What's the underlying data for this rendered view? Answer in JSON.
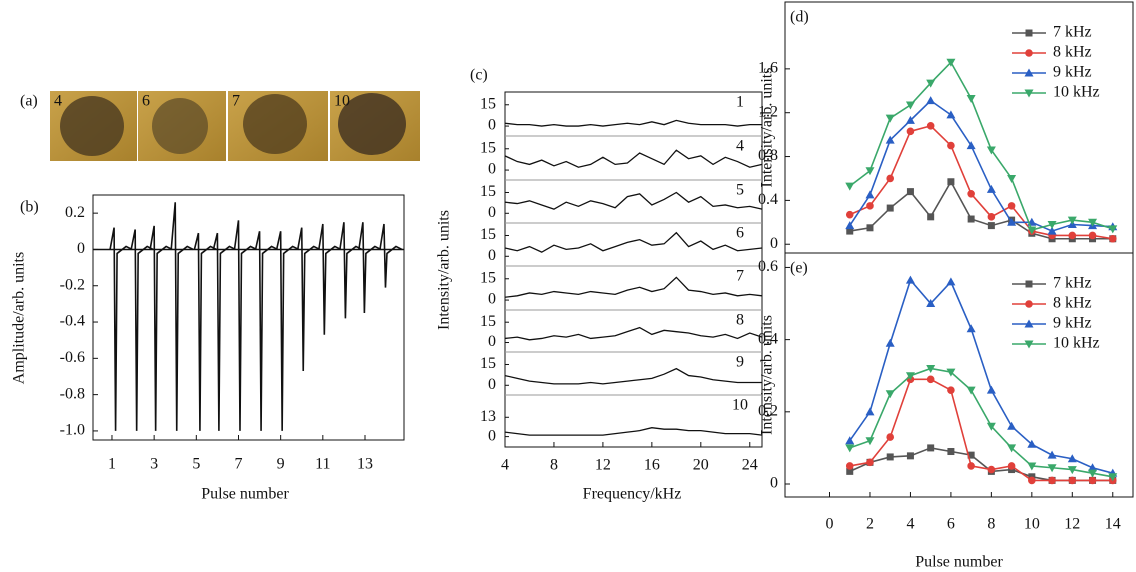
{
  "panel_a": {
    "panel_label": "(a)",
    "images": [
      {
        "label": "4"
      },
      {
        "label": "6"
      },
      {
        "label": "7"
      },
      {
        "label": "10"
      }
    ]
  },
  "chart_data": [
    {
      "type": "spike",
      "panel_label": "(b)",
      "y_label": "Amplitude/arb. units",
      "x_label": "Pulse number",
      "x": [
        1.1,
        2.1,
        3.0,
        4.0,
        5.1,
        6.0,
        7.0,
        8.0,
        9.0,
        10.0,
        11.0,
        12.0,
        12.9,
        13.9
      ],
      "max": [
        0.12,
        0.11,
        0.13,
        0.26,
        0.09,
        0.09,
        0.16,
        0.1,
        0.1,
        0.12,
        0.14,
        0.15,
        0.15,
        0.14
      ],
      "min": [
        -1,
        -1,
        -1,
        -1,
        -1,
        -1,
        -1,
        -1,
        -1,
        -0.67,
        -0.47,
        -0.38,
        -0.35,
        -0.21
      ],
      "color": "#111111",
      "xlim": [
        0.1,
        14.85
      ],
      "xticks": [
        1,
        3,
        5,
        7,
        9,
        11,
        13
      ],
      "ylim": [
        -1.05,
        0.3
      ],
      "yticks": [
        0.2,
        0,
        -0.2,
        -0.4,
        -0.6,
        -0.8,
        {
          "value": -1,
          "label": "-1.0"
        }
      ]
    },
    {
      "type": "stacked_line",
      "panel_label": "(c)",
      "y_label": "Intensity/arb. units",
      "x_label": "Frequency/kHz",
      "x": [
        4,
        5,
        6,
        7,
        8,
        9,
        10,
        11,
        12,
        13,
        14,
        15,
        16,
        17,
        18,
        19,
        20,
        21,
        22,
        23,
        24,
        25
      ],
      "xlim": [
        4,
        25
      ],
      "xticks": [
        4,
        8,
        12,
        16,
        20,
        24
      ],
      "color": "#111111",
      "panels": [
        {
          "label": "1",
          "ylim": [
            -7,
            24
          ],
          "yticks": [
            0,
            15
          ],
          "values": [
            2,
            1,
            1,
            0,
            1,
            0,
            0,
            1,
            0,
            1,
            2,
            1,
            3,
            1,
            4,
            2,
            1,
            1,
            1,
            0,
            1,
            1
          ]
        },
        {
          "label": "4",
          "ylim": [
            -7,
            24
          ],
          "yticks": [
            0,
            15
          ],
          "values": [
            10,
            6,
            4,
            7,
            3,
            6,
            2,
            4,
            9,
            4,
            5,
            12,
            8,
            4,
            14,
            8,
            10,
            4,
            9,
            6,
            2,
            4
          ]
        },
        {
          "label": "5",
          "ylim": [
            -7,
            24
          ],
          "yticks": [
            0,
            15
          ],
          "values": [
            8,
            7,
            9,
            6,
            3,
            8,
            5,
            9,
            7,
            4,
            12,
            14,
            6,
            10,
            15,
            8,
            12,
            5,
            6,
            4,
            5,
            3
          ]
        },
        {
          "label": "6",
          "ylim": [
            -7,
            24
          ],
          "yticks": [
            0,
            15
          ],
          "values": [
            6,
            4,
            7,
            3,
            8,
            5,
            6,
            9,
            4,
            7,
            10,
            12,
            8,
            9,
            17,
            7,
            11,
            5,
            8,
            4,
            5,
            6
          ]
        },
        {
          "label": "7",
          "ylim": [
            -7,
            24
          ],
          "yticks": [
            0,
            15
          ],
          "values": [
            2,
            3,
            5,
            4,
            6,
            5,
            4,
            6,
            5,
            4,
            7,
            9,
            6,
            8,
            16,
            7,
            6,
            4,
            5,
            3,
            4,
            3
          ]
        },
        {
          "label": "8",
          "ylim": [
            -7,
            24
          ],
          "yticks": [
            0,
            15
          ],
          "values": [
            3,
            4,
            2,
            3,
            5,
            4,
            6,
            3,
            4,
            5,
            8,
            11,
            6,
            9,
            8,
            7,
            5,
            4,
            6,
            3,
            7,
            4
          ]
        },
        {
          "label": "9",
          "ylim": [
            -7,
            24
          ],
          "yticks": [
            0,
            15
          ],
          "values": [
            7,
            5,
            3,
            2,
            1,
            1,
            1,
            2,
            1,
            2,
            3,
            4,
            5,
            8,
            12,
            7,
            6,
            4,
            3,
            2,
            2,
            2
          ]
        },
        {
          "label": "10",
          "ylim": [
            -7,
            28
          ],
          "yticks": [
            0,
            13
          ],
          "values": [
            3,
            2,
            1,
            1,
            1,
            1,
            1,
            1,
            1,
            2,
            3,
            4,
            6,
            5,
            5,
            4,
            4,
            3,
            2,
            2,
            2,
            1
          ]
        }
      ]
    },
    {
      "type": "line",
      "panel_label": "(d)",
      "y_label": "Intensity/arb. units",
      "x": [
        1,
        2,
        3,
        4,
        5,
        6,
        7,
        8,
        9,
        10,
        11,
        12,
        13,
        14
      ],
      "xlim": [
        -2.2,
        15
      ],
      "ylim": [
        -0.08,
        2.21
      ],
      "yticks": [
        0,
        {
          "value": 0.4,
          "label": "0.4"
        },
        {
          "value": 0.8,
          "label": "0.8"
        },
        {
          "value": 1.2,
          "label": "1.2"
        },
        {
          "value": 1.6,
          "label": "1.6"
        }
      ],
      "series": [
        {
          "name": "7 kHz",
          "color": "#555555",
          "marker": "square",
          "values": [
            0.12,
            0.15,
            0.33,
            0.48,
            0.25,
            0.57,
            0.23,
            0.17,
            0.22,
            0.1,
            0.05,
            0.05,
            0.05,
            0.05
          ]
        },
        {
          "name": "8 kHz",
          "color": "#e0403a",
          "marker": "circle",
          "values": [
            0.27,
            0.35,
            0.6,
            1.03,
            1.08,
            0.9,
            0.46,
            0.25,
            0.35,
            0.12,
            0.08,
            0.08,
            0.08,
            0.05
          ]
        },
        {
          "name": "9 kHz",
          "color": "#2a5fc4",
          "marker": "up",
          "values": [
            0.17,
            0.45,
            0.95,
            1.13,
            1.31,
            1.18,
            0.9,
            0.5,
            0.2,
            0.2,
            0.12,
            0.18,
            0.17,
            0.16
          ]
        },
        {
          "name": "10 kHz",
          "color": "#3aa86a",
          "marker": "down",
          "values": [
            0.53,
            0.67,
            1.15,
            1.27,
            1.47,
            1.66,
            1.33,
            0.86,
            0.6,
            0.13,
            0.18,
            0.22,
            0.2,
            0.14
          ]
        }
      ]
    },
    {
      "type": "line",
      "panel_label": "(e)",
      "y_label": "Intensity/arb. units",
      "x_label": "Pulse number",
      "x": [
        1,
        2,
        3,
        4,
        5,
        6,
        7,
        8,
        9,
        10,
        11,
        12,
        13,
        14
      ],
      "xlim": [
        -2.2,
        15
      ],
      "xticks": [
        0,
        2,
        4,
        6,
        8,
        10,
        12,
        14
      ],
      "ylim": [
        -0.036,
        0.64
      ],
      "yticks": [
        0,
        {
          "value": 0.2,
          "label": "0.2"
        },
        {
          "value": 0.4,
          "label": "0.4"
        },
        {
          "value": 0.6,
          "label": "0.6"
        }
      ],
      "series": [
        {
          "name": "7 kHz",
          "color": "#555555",
          "marker": "square",
          "values": [
            0.035,
            0.06,
            0.075,
            0.078,
            0.1,
            0.09,
            0.08,
            0.035,
            0.04,
            0.02,
            0.01,
            0.01,
            0.01,
            0.01
          ]
        },
        {
          "name": "8 kHz",
          "color": "#e0403a",
          "marker": "circle",
          "values": [
            0.05,
            0.06,
            0.13,
            0.29,
            0.29,
            0.26,
            0.05,
            0.04,
            0.05,
            0.01,
            0.01,
            0.01,
            0.01,
            0.01
          ]
        },
        {
          "name": "9 kHz",
          "color": "#2a5fc4",
          "marker": "up",
          "values": [
            0.12,
            0.2,
            0.39,
            0.565,
            0.5,
            0.56,
            0.43,
            0.26,
            0.16,
            0.11,
            0.08,
            0.07,
            0.045,
            0.03
          ]
        },
        {
          "name": "10 kHz",
          "color": "#3aa86a",
          "marker": "down",
          "values": [
            0.1,
            0.12,
            0.25,
            0.3,
            0.32,
            0.31,
            0.26,
            0.16,
            0.1,
            0.05,
            0.045,
            0.04,
            0.03,
            0.02
          ]
        }
      ]
    }
  ]
}
